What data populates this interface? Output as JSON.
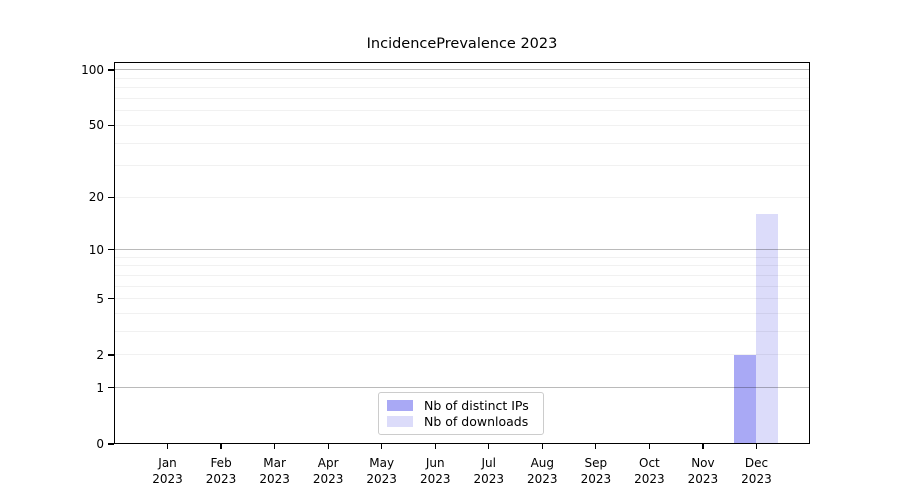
{
  "chart_data": {
    "type": "bar",
    "title": "IncidencePrevalence 2023",
    "x_axis": {
      "months": [
        "Jan",
        "Feb",
        "Mar",
        "Apr",
        "May",
        "Jun",
        "Jul",
        "Aug",
        "Sep",
        "Oct",
        "Nov",
        "Dec"
      ],
      "year_line": "2023"
    },
    "y_axis": {
      "scale": "log10(1+y)",
      "ticks": [
        0,
        1,
        2,
        5,
        10,
        20,
        50,
        100
      ],
      "major_gridlines": [
        1,
        10,
        100
      ],
      "minor_gridlines": [
        2,
        3,
        4,
        5,
        6,
        7,
        8,
        9,
        20,
        30,
        40,
        50,
        60,
        70,
        80,
        90
      ],
      "ylim": [
        0,
        110
      ],
      "grid": "on"
    },
    "series": [
      {
        "name": "Nb of distinct IPs",
        "color": "#a9a9f5",
        "values": [
          0,
          0,
          0,
          0,
          0,
          0,
          0,
          0,
          0,
          0,
          0,
          2
        ]
      },
      {
        "name": "Nb of downloads",
        "color": "#dcdcfa",
        "values": [
          0,
          0,
          0,
          0,
          0,
          0,
          0,
          0,
          0,
          0,
          0,
          16
        ]
      }
    ],
    "legend": {
      "position": "bottom-center",
      "entries": [
        "Nb of distinct IPs",
        "Nb of downloads"
      ]
    }
  }
}
